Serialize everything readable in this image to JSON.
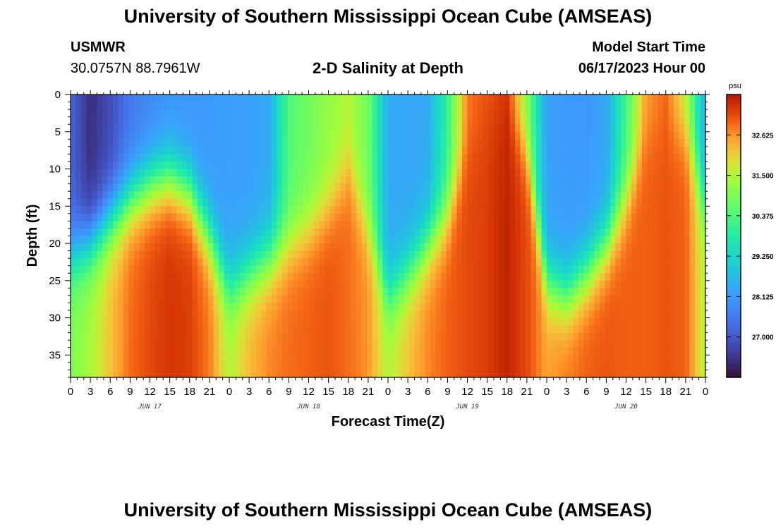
{
  "page": {
    "title": "University of Southern Mississippi Ocean Cube (AMSEAS)",
    "station": "USMWR",
    "coords": "30.0757N  88.7961W",
    "plot_title": "2-D Salinity at Depth",
    "start_label": "Model Start Time",
    "start_value": "06/17/2023 Hour 00",
    "footer_title": "University of Southern Mississippi Ocean Cube (AMSEAS)"
  },
  "chart_data": {
    "type": "heatmap",
    "title": "2-D Salinity at Depth",
    "xlabel": "Forecast Time(Z)",
    "ylabel": "Depth (ft)",
    "xlim_hours": [
      0,
      96
    ],
    "ylim_ft": [
      0,
      38
    ],
    "y_ticks": [
      0,
      5,
      10,
      15,
      20,
      25,
      30,
      35
    ],
    "x_tick_labels": [
      "0",
      "3",
      "6",
      "9",
      "12",
      "15",
      "18",
      "21",
      "0",
      "3",
      "6",
      "9",
      "12",
      "15",
      "18",
      "21",
      "0",
      "3",
      "6",
      "9",
      "12",
      "15",
      "18",
      "21",
      "0",
      "3",
      "6",
      "9",
      "12",
      "15",
      "18",
      "21",
      "0"
    ],
    "day_labels": [
      {
        "label": "JUN 17",
        "hour": 12
      },
      {
        "label": "JUN 18",
        "hour": 36
      },
      {
        "label": "JUN 19",
        "hour": 60
      },
      {
        "label": "JUN 20",
        "hour": 84
      }
    ],
    "colorbar": {
      "unit": "psu",
      "min": 25.875,
      "max": 33.75,
      "ticks": [
        27.0,
        28.125,
        29.25,
        30.375,
        31.5,
        32.625
      ],
      "tick_labels": [
        "27.000",
        "28.125",
        "29.250",
        "30.375",
        "31.500",
        "32.625"
      ]
    },
    "series": [
      {
        "hour": 0,
        "surface": 27.2,
        "bottom": 31.0,
        "halocline_ft": 22
      },
      {
        "hour": 3,
        "surface": 26.3,
        "bottom": 31.4,
        "halocline_ft": 20
      },
      {
        "hour": 6,
        "surface": 26.8,
        "bottom": 32.2,
        "halocline_ft": 17
      },
      {
        "hour": 9,
        "surface": 27.5,
        "bottom": 32.9,
        "halocline_ft": 14
      },
      {
        "hour": 12,
        "surface": 27.8,
        "bottom": 33.2,
        "halocline_ft": 12
      },
      {
        "hour": 15,
        "surface": 28.0,
        "bottom": 33.4,
        "halocline_ft": 11
      },
      {
        "hour": 18,
        "surface": 28.0,
        "bottom": 33.3,
        "halocline_ft": 13
      },
      {
        "hour": 21,
        "surface": 28.1,
        "bottom": 32.8,
        "halocline_ft": 19
      },
      {
        "hour": 24,
        "surface": 28.2,
        "bottom": 31.5,
        "halocline_ft": 26
      },
      {
        "hour": 27,
        "surface": 28.2,
        "bottom": 32.3,
        "halocline_ft": 24
      },
      {
        "hour": 30,
        "surface": 28.4,
        "bottom": 32.7,
        "halocline_ft": 22
      },
      {
        "hour": 33,
        "surface": 30.4,
        "bottom": 32.9,
        "halocline_ft": 20
      },
      {
        "hour": 36,
        "surface": 30.8,
        "bottom": 33.0,
        "halocline_ft": 18
      },
      {
        "hour": 39,
        "surface": 31.2,
        "bottom": 33.1,
        "halocline_ft": 15
      },
      {
        "hour": 42,
        "surface": 31.5,
        "bottom": 32.9,
        "halocline_ft": 10
      },
      {
        "hour": 45,
        "surface": 30.8,
        "bottom": 32.6,
        "halocline_ft": 18
      },
      {
        "hour": 48,
        "surface": 28.4,
        "bottom": 31.5,
        "halocline_ft": 27
      },
      {
        "hour": 51,
        "surface": 28.3,
        "bottom": 32.2,
        "halocline_ft": 24
      },
      {
        "hour": 54,
        "surface": 28.4,
        "bottom": 32.7,
        "halocline_ft": 20
      },
      {
        "hour": 57,
        "surface": 30.0,
        "bottom": 33.0,
        "halocline_ft": 16
      },
      {
        "hour": 60,
        "surface": 32.8,
        "bottom": 33.2,
        "halocline_ft": 8
      },
      {
        "hour": 63,
        "surface": 33.1,
        "bottom": 33.3,
        "halocline_ft": 4
      },
      {
        "hour": 66,
        "surface": 33.3,
        "bottom": 33.6,
        "halocline_ft": 2
      },
      {
        "hour": 69,
        "surface": 31.0,
        "bottom": 33.2,
        "halocline_ft": 8
      },
      {
        "hour": 72,
        "surface": 28.2,
        "bottom": 32.5,
        "halocline_ft": 25
      },
      {
        "hour": 75,
        "surface": 28.1,
        "bottom": 32.8,
        "halocline_ft": 27
      },
      {
        "hour": 78,
        "surface": 28.1,
        "bottom": 33.0,
        "halocline_ft": 24
      },
      {
        "hour": 81,
        "surface": 28.3,
        "bottom": 33.1,
        "halocline_ft": 20
      },
      {
        "hour": 84,
        "surface": 30.2,
        "bottom": 33.0,
        "halocline_ft": 14
      },
      {
        "hour": 87,
        "surface": 32.5,
        "bottom": 33.0,
        "halocline_ft": 6
      },
      {
        "hour": 90,
        "surface": 32.9,
        "bottom": 33.1,
        "halocline_ft": 4
      },
      {
        "hour": 93,
        "surface": 31.5,
        "bottom": 33.0,
        "halocline_ft": 5
      },
      {
        "hour": 96,
        "surface": 28.3,
        "bottom": 31.5,
        "halocline_ft": 15
      }
    ]
  }
}
